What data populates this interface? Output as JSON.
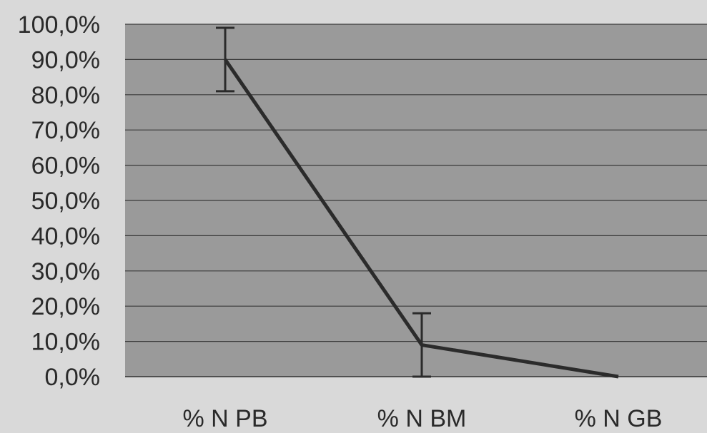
{
  "colors": {
    "page_background": "#d9d9d9",
    "plot_background": "#9a9a9a",
    "gridline": "#3a3a3a",
    "series_line": "#2b2b2b",
    "text": "#2a2a2a"
  },
  "chart_data": {
    "type": "line",
    "title": "",
    "xlabel": "",
    "ylabel": "",
    "categories": [
      "% N PB",
      "% N BM",
      "% N GB"
    ],
    "series": [
      {
        "values": [
          90.0,
          9.0,
          0.0
        ],
        "error": [
          9.0,
          9.0,
          0.0
        ]
      }
    ],
    "ylim": [
      0,
      100
    ],
    "yticks": [
      0,
      10,
      20,
      30,
      40,
      50,
      60,
      70,
      80,
      90,
      100
    ],
    "ytick_labels": [
      "0,0%",
      "10,0%",
      "20,0%",
      "30,0%",
      "40,0%",
      "50,0%",
      "60,0%",
      "70,0%",
      "80,0%",
      "90,0%",
      "100,0%"
    ],
    "grid": true,
    "legend": "none"
  }
}
